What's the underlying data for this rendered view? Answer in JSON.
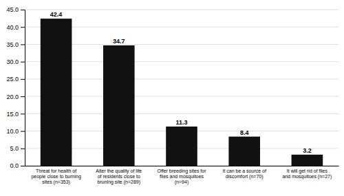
{
  "chart_data": {
    "type": "bar",
    "categories": [
      "Threat for health of\npeople close to burning\nsites (n=353)",
      "Alter the quality of life\nof residents close to\nbruning site (n=289)",
      "Offer breeding sites for\nflies and mosquitoes\n(n=94)",
      "It can be a source of\ndiscomfort (n=70)",
      "It will get rid of flies\nand mosquitoes (n=27)"
    ],
    "values": [
      42.4,
      34.7,
      11.3,
      8.4,
      3.2
    ],
    "color": "#111111",
    "ylim": [
      0,
      45
    ],
    "yticks": [
      {
        "value": 0,
        "label": "0.0"
      },
      {
        "value": 5,
        "label": "5.0"
      },
      {
        "value": 10,
        "label": "10.0"
      },
      {
        "value": 15,
        "label": "15.0"
      },
      {
        "value": 20,
        "label": "20.0"
      },
      {
        "value": 25,
        "label": "25.0"
      },
      {
        "value": 30,
        "label": "30.0"
      },
      {
        "value": 35,
        "label": "35.0"
      },
      {
        "value": 40,
        "label": "40.0"
      },
      {
        "value": 45,
        "label": "45.0"
      }
    ],
    "grid": true,
    "data_labels": true
  }
}
